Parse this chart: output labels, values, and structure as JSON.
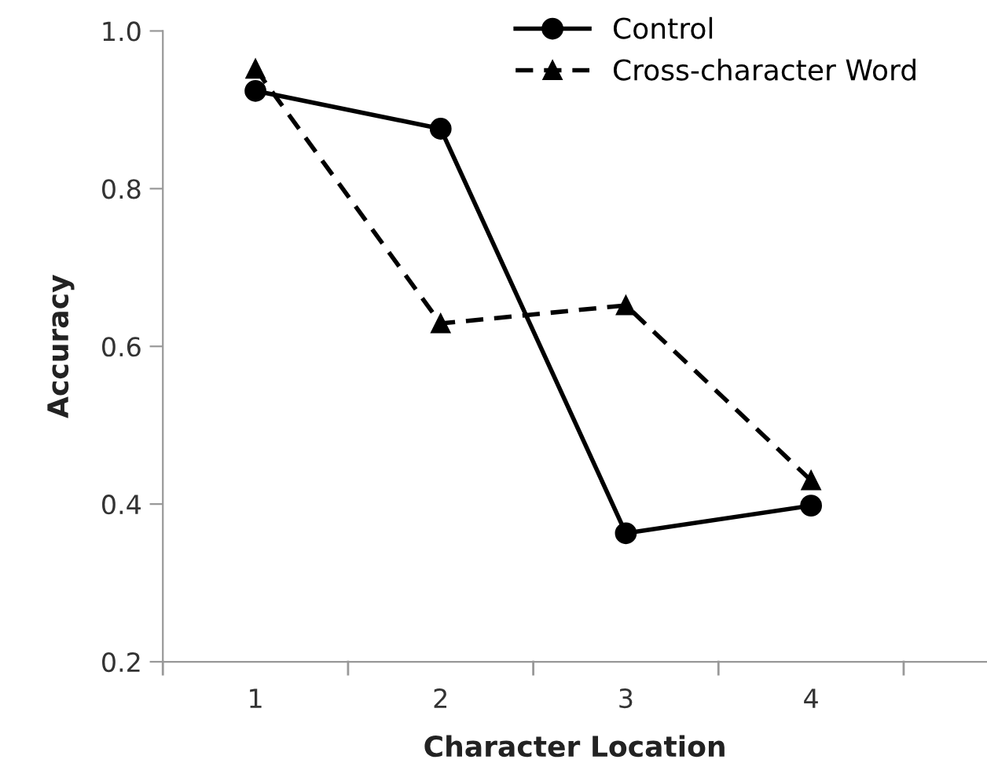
{
  "chart_data": {
    "type": "line",
    "xlabel": "Character Location",
    "ylabel": "Accuracy",
    "categories": [
      "1",
      "2",
      "3",
      "4"
    ],
    "series": [
      {
        "name": "Control",
        "color": "#000000",
        "values": [
          0.924,
          0.876,
          0.363,
          0.398
        ],
        "marker": "circle",
        "line_style": "solid"
      },
      {
        "name": "Cross-character Word",
        "color": "#000000",
        "values": [
          0.952,
          0.629,
          0.652,
          0.43
        ],
        "marker": "triangle",
        "line_style": "dashed"
      }
    ],
    "ylim": [
      0.2,
      1.0
    ],
    "yticks": [
      0.2,
      0.4,
      0.6,
      0.8,
      {
        "value": 1.0,
        "label": "1.0"
      }
    ],
    "grid": false,
    "legend": "top right"
  }
}
